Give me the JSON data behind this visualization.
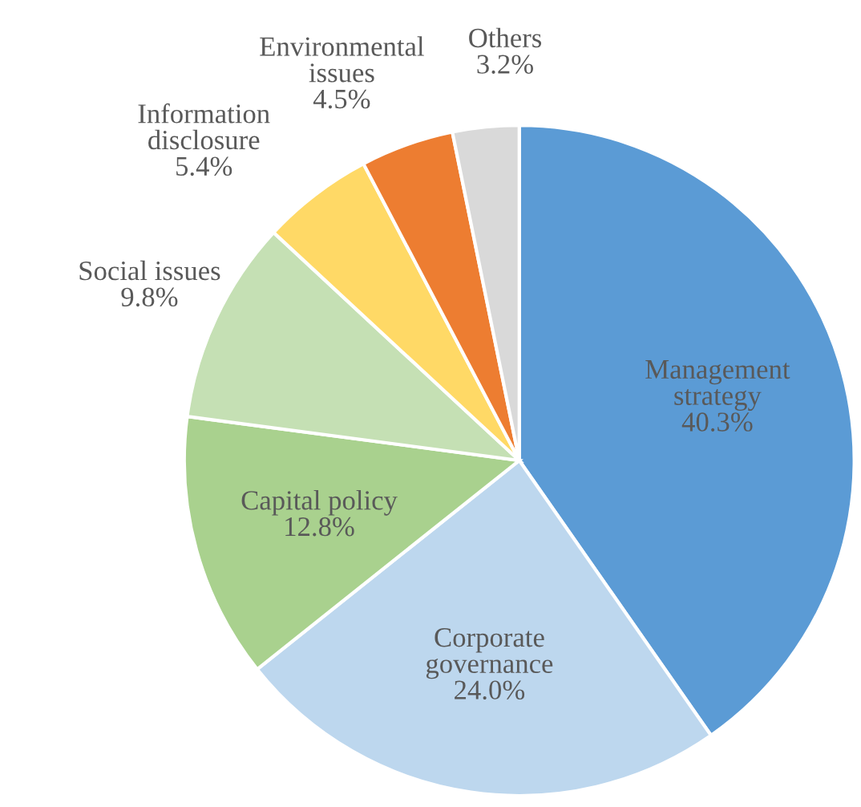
{
  "chart_data": {
    "type": "pie",
    "categories": [
      "Management strategy",
      "Corporate governance",
      "Capital policy",
      "Social issues",
      "Information disclosure",
      "Environmental issues",
      "Others"
    ],
    "values": [
      40.3,
      24.0,
      12.8,
      9.8,
      5.4,
      4.5,
      3.2
    ],
    "colors": [
      "#5b9bd5",
      "#bdd7ee",
      "#a9d18e",
      "#c5e0b4",
      "#ffd966",
      "#ed7d31",
      "#d9d9d9"
    ],
    "value_labels": [
      "40.3%",
      "24.0%",
      "12.8%",
      "9.8%",
      "5.4%",
      "4.5%",
      "3.2%"
    ]
  }
}
